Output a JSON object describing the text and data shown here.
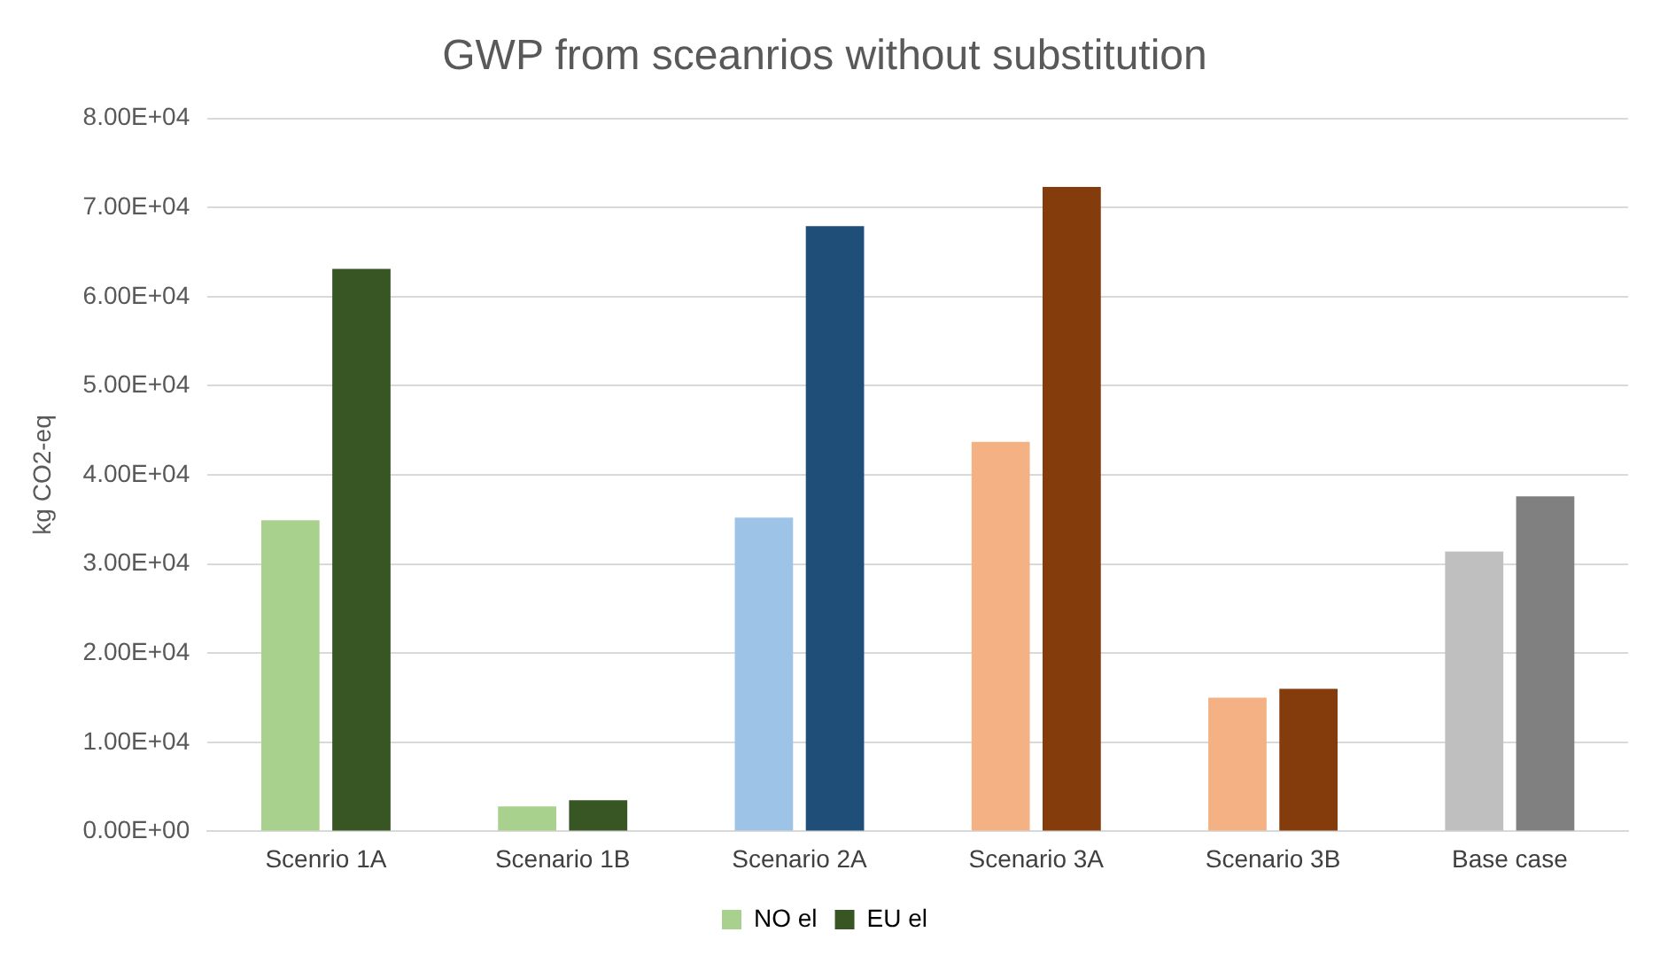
{
  "chart_data": {
    "type": "bar",
    "title": "GWP from sceanrios without substitution",
    "ylabel": "kg CO2-eq",
    "categories": [
      "Scenrio 1A",
      "Scenario 1B",
      "Scenario 2A",
      "Scenario 3A",
      "Scenario 3B",
      "Base case"
    ],
    "series": [
      {
        "name": "NO el",
        "color": "#a9d18e",
        "colors": [
          "#a9d18e",
          "#a9d18e",
          "#9dc3e6",
          "#f4b183",
          "#f4b183",
          "#bfbfbf"
        ],
        "values": [
          34900,
          2800,
          35200,
          43700,
          15000,
          31400
        ]
      },
      {
        "name": "EU el",
        "color": "#375623",
        "colors": [
          "#375623",
          "#375623",
          "#1f4e79",
          "#843c0c",
          "#843c0c",
          "#808080"
        ],
        "values": [
          63100,
          3500,
          67900,
          72300,
          16000,
          37600
        ]
      }
    ],
    "ylim": [
      0,
      80000
    ],
    "yticks": [
      {
        "value": 0,
        "label": "0.00E+00"
      },
      {
        "value": 10000,
        "label": "1.00E+04"
      },
      {
        "value": 20000,
        "label": "2.00E+04"
      },
      {
        "value": 30000,
        "label": "3.00E+04"
      },
      {
        "value": 40000,
        "label": "4.00E+04"
      },
      {
        "value": 50000,
        "label": "5.00E+04"
      },
      {
        "value": 60000,
        "label": "6.00E+04"
      },
      {
        "value": 70000,
        "label": "7.00E+04"
      },
      {
        "value": 80000,
        "label": "8.00E+04"
      }
    ],
    "grid": "y",
    "legend": "bottom"
  }
}
